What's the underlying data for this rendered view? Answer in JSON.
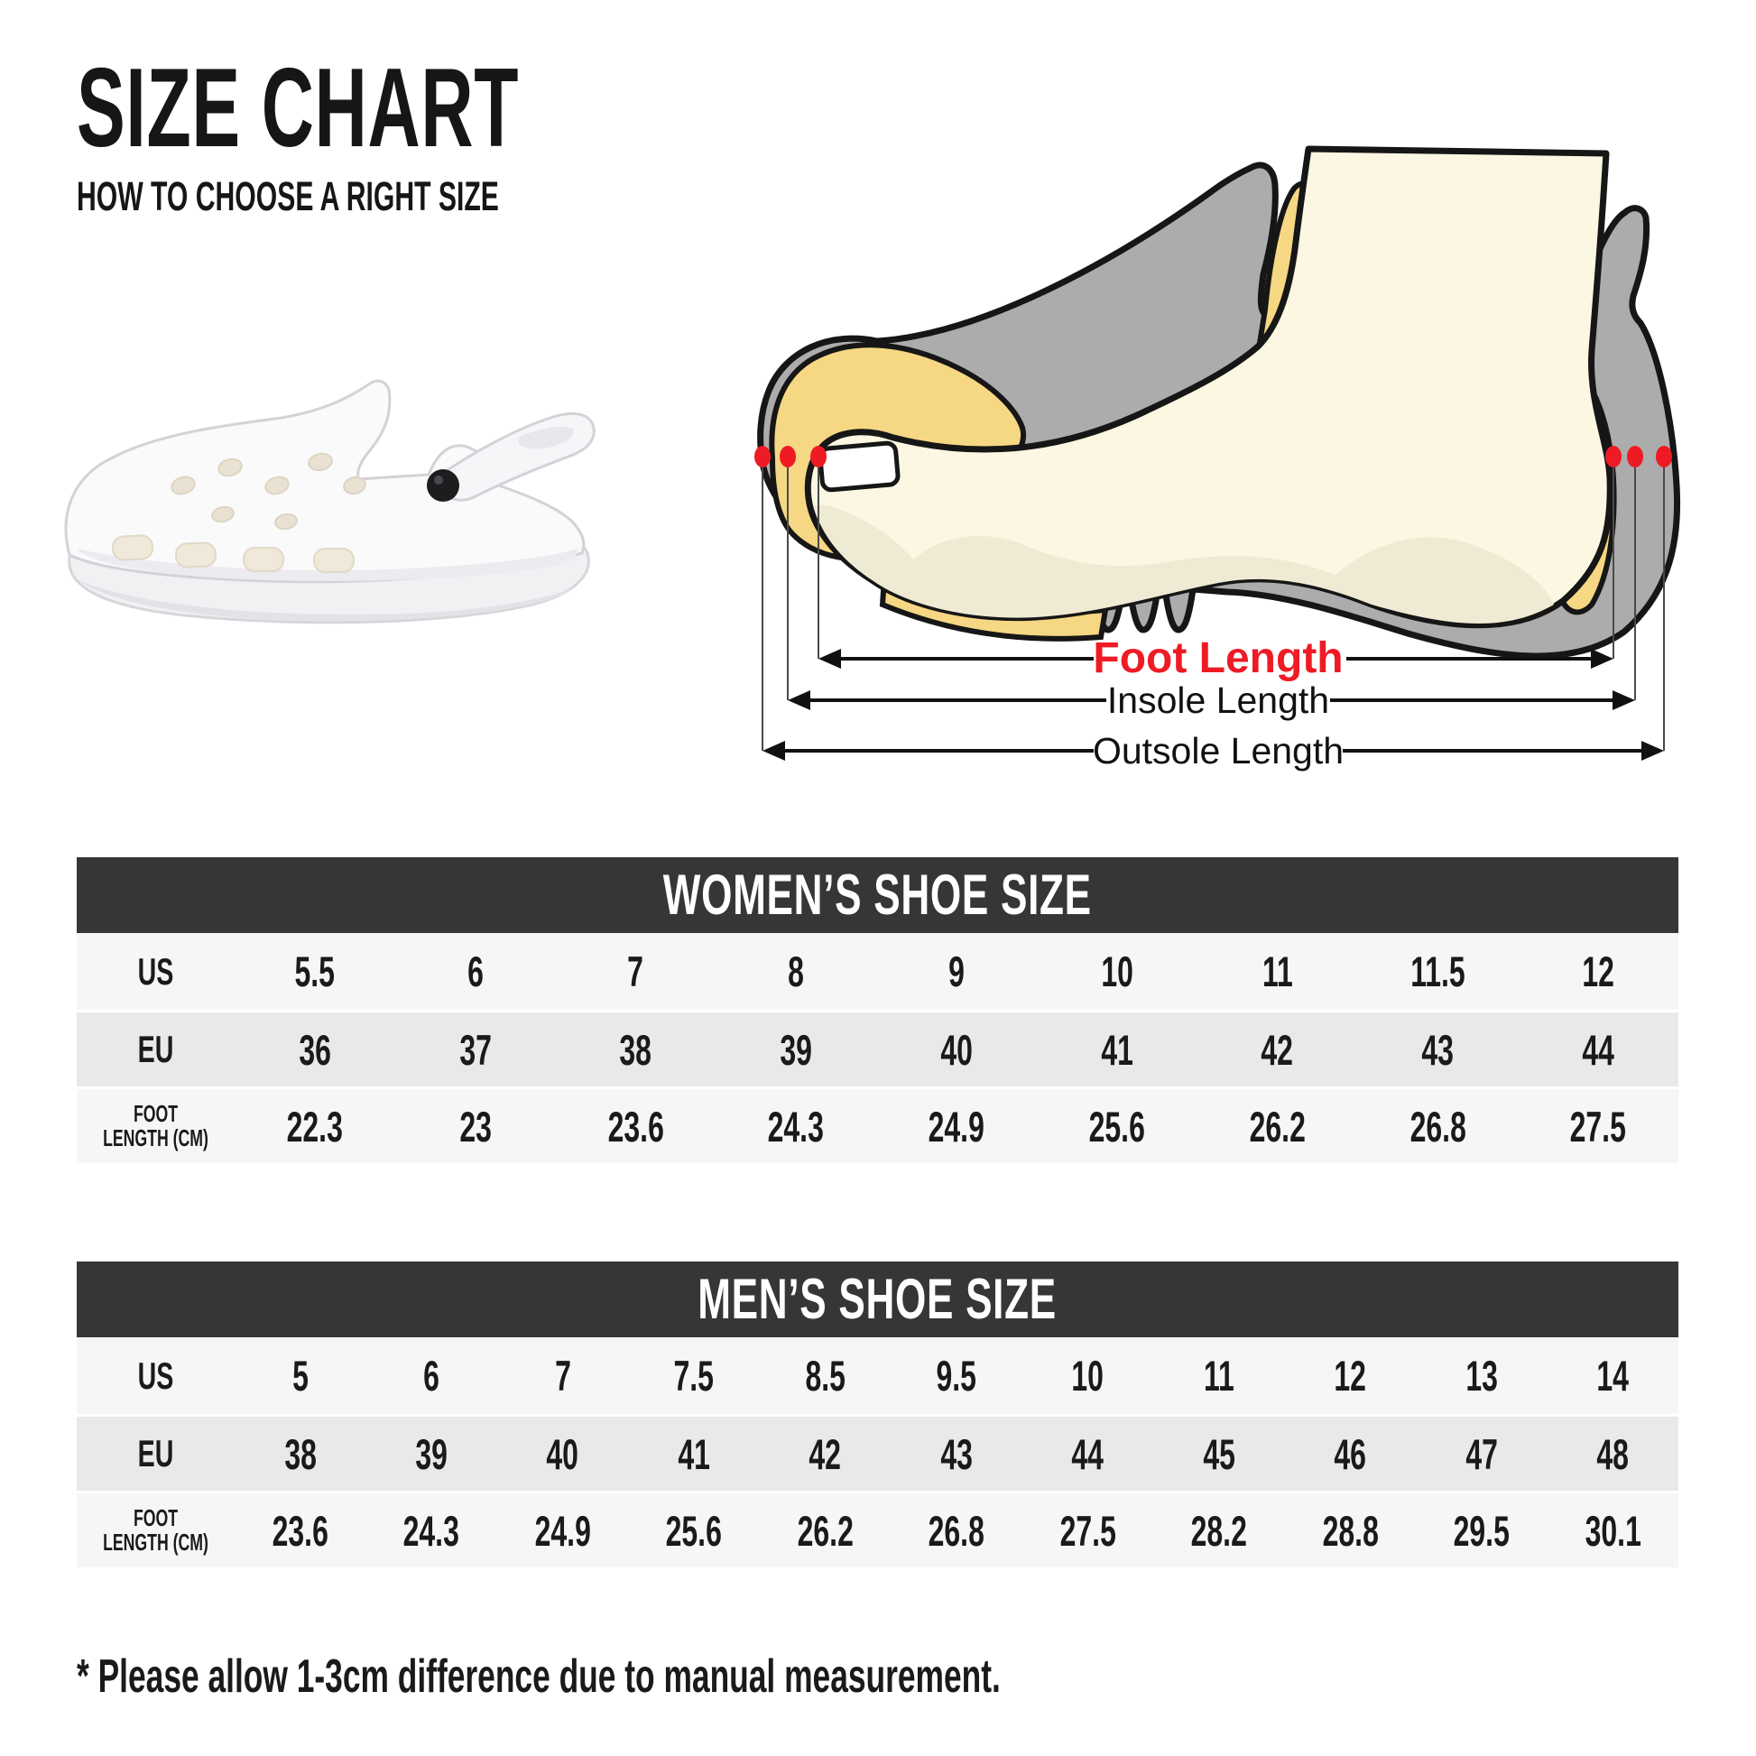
{
  "header": {
    "title": "SIZE CHART",
    "subtitle": "HOW TO CHOOSE A RIGHT SIZE"
  },
  "diagram": {
    "foot_length_label": "Foot Length",
    "insole_length_label": "Insole Length",
    "outsole_length_label": "Outsole Length",
    "accent_red": "#ee1b24",
    "shoe_gray": "#acacac",
    "insole_yellow": "#f6d783",
    "foot_cream": "#fbf7e2"
  },
  "women_table": {
    "title": "WOMEN’S SHOE SIZE",
    "rows": [
      {
        "label_lines": [
          "US"
        ],
        "values": [
          "5.5",
          "6",
          "7",
          "8",
          "9",
          "10",
          "11",
          "11.5",
          "12"
        ]
      },
      {
        "label_lines": [
          "EU"
        ],
        "values": [
          "36",
          "37",
          "38",
          "39",
          "40",
          "41",
          "42",
          "43",
          "44"
        ]
      },
      {
        "label_lines": [
          "FOOT",
          "LENGTH (CM)"
        ],
        "values": [
          "22.3",
          "23",
          "23.6",
          "24.3",
          "24.9",
          "25.6",
          "26.2",
          "26.8",
          "27.5"
        ]
      }
    ]
  },
  "men_table": {
    "title": "MEN’S SHOE SIZE",
    "rows": [
      {
        "label_lines": [
          "US"
        ],
        "values": [
          "5",
          "6",
          "7",
          "7.5",
          "8.5",
          "9.5",
          "10",
          "11",
          "12",
          "13",
          "14"
        ]
      },
      {
        "label_lines": [
          "EU"
        ],
        "values": [
          "38",
          "39",
          "40",
          "41",
          "42",
          "43",
          "44",
          "45",
          "46",
          "47",
          "48"
        ]
      },
      {
        "label_lines": [
          "FOOT",
          "LENGTH (CM)"
        ],
        "values": [
          "23.6",
          "24.3",
          "24.9",
          "25.6",
          "26.2",
          "26.8",
          "27.5",
          "28.2",
          "28.8",
          "29.5",
          "30.1"
        ]
      }
    ]
  },
  "note": "* Please allow 1-3cm difference due to manual measurement."
}
